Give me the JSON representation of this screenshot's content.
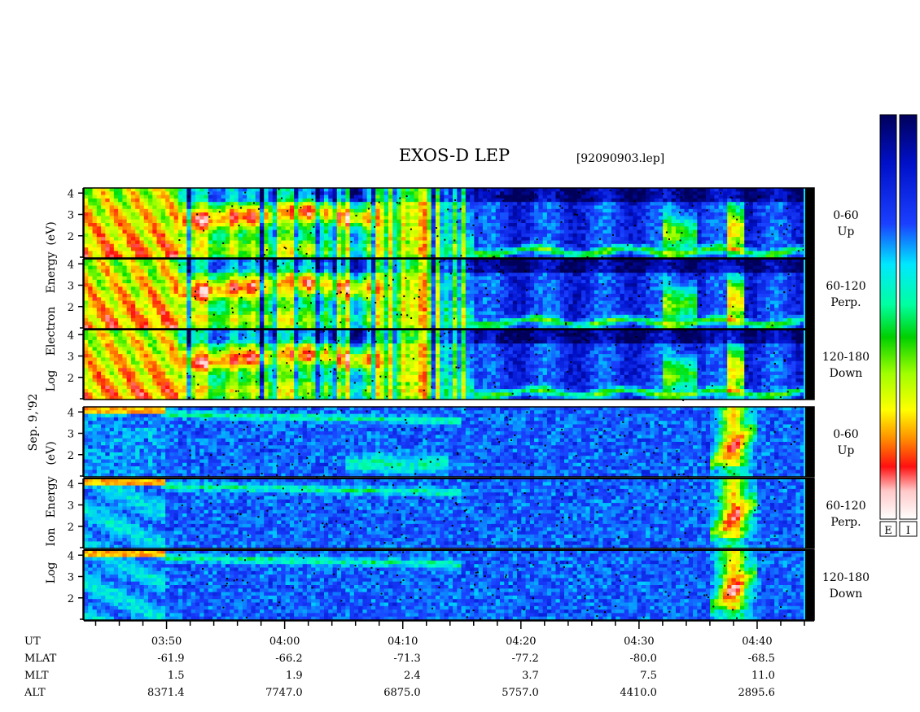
{
  "title": "EXOS-D LEP",
  "subtitle": "[92090903.lep]",
  "date_label": "Sep. 9,'92",
  "electron_ylabel": [
    "Log",
    "Electron",
    "Energy",
    "(eV)"
  ],
  "ion_ylabel": [
    "Log",
    "Ion",
    "Energy",
    "(eV)"
  ],
  "colorbar_labels": [
    "E",
    "I"
  ],
  "chart_data": {
    "type": "heatmap",
    "title": "EXOS-D LEP",
    "subtitle": "[92090903.lep]",
    "x_axis": {
      "label": "UT",
      "ticks": [
        "03:50",
        "04:00",
        "04:10",
        "04:20",
        "04:30",
        "04:40"
      ],
      "range": [
        "03:43",
        "04:44"
      ]
    },
    "y_axis": {
      "scale": "log10 energy (eV)",
      "ticks": [
        2,
        3,
        4
      ],
      "range": [
        1,
        4.2
      ]
    },
    "groups": [
      {
        "species": "Electron",
        "panels": [
          {
            "pitch_angle": "0-60",
            "direction": "Up"
          },
          {
            "pitch_angle": "60-120",
            "direction": "Perp."
          },
          {
            "pitch_angle": "120-180",
            "direction": "Down"
          }
        ]
      },
      {
        "species": "Ion",
        "panels": [
          {
            "pitch_angle": "0-60",
            "direction": "Up"
          },
          {
            "pitch_angle": "60-120",
            "direction": "Perp."
          },
          {
            "pitch_angle": "120-180",
            "direction": "Down"
          }
        ]
      }
    ],
    "ephemeris": {
      "rows": [
        "UT",
        "MLAT",
        "MLT",
        "ALT"
      ],
      "columns": [
        {
          "UT": "03:50",
          "MLAT": "-61.9",
          "MLT": "1.5",
          "ALT": "8371.4"
        },
        {
          "UT": "04:00",
          "MLAT": "-66.2",
          "MLT": "1.9",
          "ALT": "7747.0"
        },
        {
          "UT": "04:10",
          "MLAT": "-71.3",
          "MLT": "2.4",
          "ALT": "6875.0"
        },
        {
          "UT": "04:20",
          "MLAT": "-77.2",
          "MLT": "3.7",
          "ALT": "5757.0"
        },
        {
          "UT": "04:30",
          "MLAT": "-80.0",
          "MLT": "7.5",
          "ALT": "4410.0"
        },
        {
          "UT": "04:40",
          "MLAT": "-68.5",
          "MLT": "11.0",
          "ALT": "2895.6"
        }
      ]
    },
    "colormap": [
      "#00005a",
      "#0010c8",
      "#1a40ff",
      "#00c8ff",
      "#00ffc0",
      "#00e000",
      "#a0ff00",
      "#ffff00",
      "#ff9000",
      "#ff1010",
      "#ffd0d0",
      "#ffffff"
    ]
  }
}
